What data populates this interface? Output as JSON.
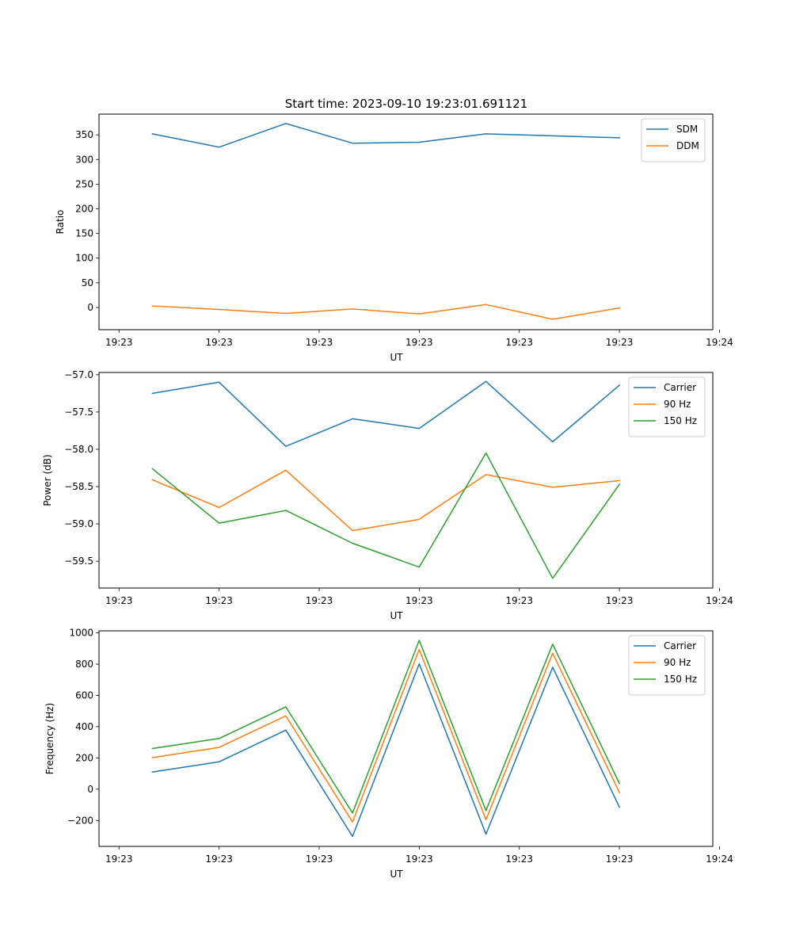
{
  "chart_data": [
    {
      "type": "line",
      "title": "Start time: 2023-09-10 19:23:01.691121",
      "xlabel": "UT",
      "ylabel": "Ratio",
      "x": [
        1,
        2,
        3,
        4,
        5,
        6,
        7,
        8
      ],
      "xlim": [
        0.2,
        9.4
      ],
      "xticks": [
        0.5,
        2.0,
        3.5,
        5.0,
        6.5,
        8.0,
        9.5
      ],
      "xtick_labels": [
        "19:23",
        "19:23",
        "19:23",
        "19:23",
        "19:23",
        "19:23",
        "19:24"
      ],
      "ylim": [
        -45,
        392
      ],
      "yticks": [
        0,
        50,
        100,
        150,
        200,
        250,
        300,
        350
      ],
      "ytick_labels": [
        "0",
        "50",
        "100",
        "150",
        "200",
        "250",
        "300",
        "350"
      ],
      "legend_position": "top-right",
      "series": [
        {
          "name": "SDM",
          "color": "#1f77b4",
          "values": [
            352,
            325,
            373,
            333,
            335,
            352,
            348,
            344
          ]
        },
        {
          "name": "DDM",
          "color": "#ff7f0e",
          "values": [
            3,
            -4,
            -12,
            -3,
            -13,
            6,
            -24,
            -1
          ]
        }
      ]
    },
    {
      "type": "line",
      "title": "",
      "xlabel": "UT",
      "ylabel": "Power (dB)",
      "x": [
        1,
        2,
        3,
        4,
        5,
        6,
        7,
        8
      ],
      "xlim": [
        0.2,
        9.4
      ],
      "xticks": [
        0.5,
        2.0,
        3.5,
        5.0,
        6.5,
        8.0,
        9.5
      ],
      "xtick_labels": [
        "19:23",
        "19:23",
        "19:23",
        "19:23",
        "19:23",
        "19:23",
        "19:24"
      ],
      "ylim": [
        -59.86,
        -56.97
      ],
      "yticks": [
        -59.5,
        -59.0,
        -58.5,
        -58.0,
        -57.5,
        -57.0
      ],
      "ytick_labels": [
        "−59.5",
        "−59.0",
        "−58.5",
        "−58.0",
        "−57.5",
        "−57.0"
      ],
      "legend_position": "top-right",
      "series": [
        {
          "name": "Carrier",
          "color": "#1f77b4",
          "values": [
            -57.25,
            -57.1,
            -57.96,
            -57.59,
            -57.72,
            -57.09,
            -57.9,
            -57.14
          ]
        },
        {
          "name": "90 Hz",
          "color": "#ff7f0e",
          "values": [
            -58.41,
            -58.78,
            -58.28,
            -59.09,
            -58.94,
            -58.34,
            -58.51,
            -58.42
          ]
        },
        {
          "name": "150 Hz",
          "color": "#2ca02c",
          "values": [
            -58.26,
            -58.99,
            -58.82,
            -59.26,
            -59.58,
            -58.05,
            -59.73,
            -58.47
          ]
        }
      ]
    },
    {
      "type": "line",
      "title": "",
      "xlabel": "UT",
      "ylabel": "Frequency (Hz)",
      "x": [
        1,
        2,
        3,
        4,
        5,
        6,
        7,
        8
      ],
      "xlim": [
        0.2,
        9.4
      ],
      "xticks": [
        0.5,
        2.0,
        3.5,
        5.0,
        6.5,
        8.0,
        9.5
      ],
      "xtick_labels": [
        "19:23",
        "19:23",
        "19:23",
        "19:23",
        "19:23",
        "19:23",
        "19:24"
      ],
      "ylim": [
        -366,
        1013
      ],
      "yticks": [
        -200,
        0,
        200,
        400,
        600,
        800,
        1000
      ],
      "ytick_labels": [
        "−200",
        "0",
        "200",
        "400",
        "600",
        "800",
        "1000"
      ],
      "legend_position": "top-right",
      "series": [
        {
          "name": "Carrier",
          "color": "#1f77b4",
          "values": [
            110,
            175,
            378,
            -302,
            802,
            -288,
            780,
            -115
          ]
        },
        {
          "name": "90 Hz",
          "color": "#ff7f0e",
          "values": [
            202,
            267,
            469,
            -210,
            894,
            -195,
            870,
            -22
          ]
        },
        {
          "name": "150 Hz",
          "color": "#2ca02c",
          "values": [
            260,
            324,
            527,
            -152,
            952,
            -137,
            928,
            36
          ]
        }
      ]
    }
  ]
}
